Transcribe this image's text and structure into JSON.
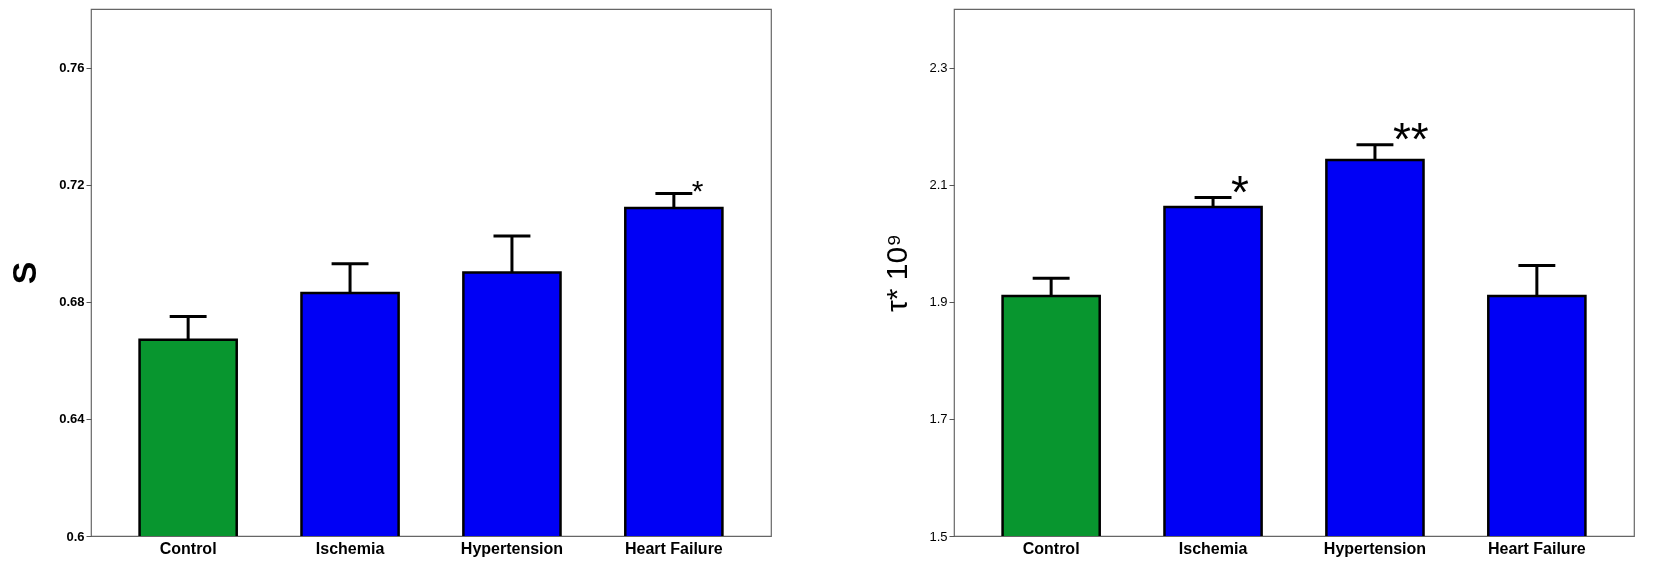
{
  "chart_data": [
    {
      "type": "bar",
      "ylabel": "S",
      "categories": [
        "Control",
        "Ischemia",
        "Hypertension",
        "Heart Failure"
      ],
      "values": [
        0.667,
        0.683,
        0.69,
        0.712
      ],
      "colors": [
        "#08962f",
        "#0000f5",
        "#0000f5",
        "#0000f5"
      ],
      "errors": [
        [
          0.667,
          0.675
        ],
        [
          0.683,
          0.693
        ],
        [
          0.69,
          0.7025
        ],
        [
          0.712,
          0.717
        ]
      ],
      "ylim": [
        0.6,
        0.78
      ],
      "yticks": [
        0.6,
        0.64,
        0.68,
        0.72,
        0.76
      ],
      "grid": false,
      "annotations": [
        {
          "text": "*",
          "x": "Heart Failure",
          "y": 0.717
        }
      ]
    },
    {
      "type": "bar",
      "ylabel": "τ* 10⁹",
      "categories": [
        "Control",
        "Ischemia",
        "Hypertension",
        "Heart Failure"
      ],
      "values": [
        1.91,
        2.062,
        2.142,
        1.91
      ],
      "colors": [
        "#08962f",
        "#0000f5",
        "#0000f5",
        "#0000f5"
      ],
      "errors": [
        [
          1.91,
          1.94
        ],
        [
          2.062,
          2.078
        ],
        [
          2.142,
          2.168
        ],
        [
          1.91,
          1.962
        ]
      ],
      "ylim": [
        1.5,
        2.4
      ],
      "yticks": [
        1.5,
        1.7,
        1.9,
        2.1,
        2.3
      ],
      "grid": false,
      "annotations": [
        {
          "text": "*",
          "x": "Ischemia",
          "y": 2.078
        },
        {
          "text": "**",
          "x": "Hypertension",
          "y": 2.168
        }
      ]
    }
  ]
}
